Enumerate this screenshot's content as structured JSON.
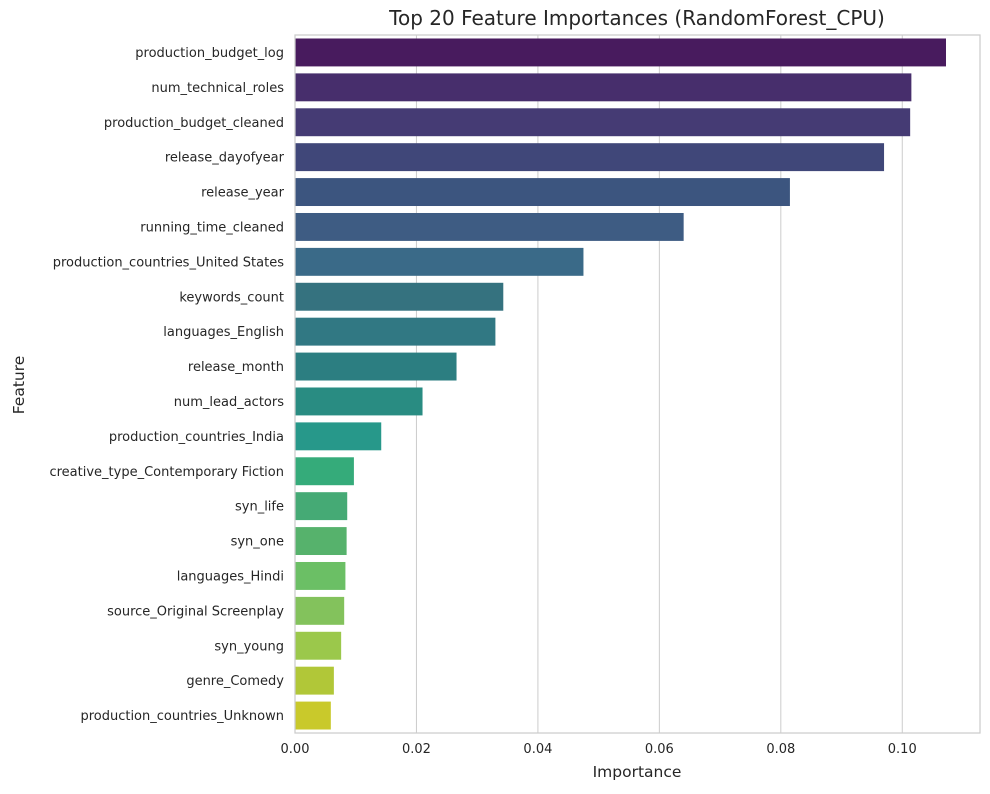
{
  "chart_data": {
    "type": "bar",
    "orientation": "horizontal",
    "title": "Top 20 Feature Importances (RandomForest_CPU)",
    "xlabel": "Importance",
    "ylabel": "Feature",
    "xlim": [
      0,
      0.1128
    ],
    "xticks": [
      0.0,
      0.02,
      0.04,
      0.06,
      0.08,
      0.1
    ],
    "xtick_labels": [
      "0.00",
      "0.02",
      "0.04",
      "0.06",
      "0.08",
      "0.10"
    ],
    "grid": "vertical",
    "palette": "viridis",
    "categories": [
      "production_budget_log",
      "num_technical_roles",
      "production_budget_cleaned",
      "release_dayofyear",
      "release_year",
      "running_time_cleaned",
      "production_countries_United States",
      "keywords_count",
      "languages_English",
      "release_month",
      "num_lead_actors",
      "production_countries_India",
      "creative_type_Contemporary Fiction",
      "syn_life",
      "syn_one",
      "languages_Hindi",
      "source_Original Screenplay",
      "syn_young",
      "genre_Comedy",
      "production_countries_Unknown"
    ],
    "values": [
      0.1072,
      0.1015,
      0.1013,
      0.097,
      0.0815,
      0.064,
      0.0475,
      0.0343,
      0.033,
      0.0266,
      0.021,
      0.0142,
      0.0097,
      0.0086,
      0.0085,
      0.0083,
      0.0081,
      0.0076,
      0.0064,
      0.0059
    ],
    "colors": [
      "#481b5e",
      "#472e6c",
      "#453b74",
      "#404779",
      "#3c557f",
      "#3e5c83",
      "#3a6a88",
      "#35727f",
      "#317883",
      "#2c7e81",
      "#298c82",
      "#27988a",
      "#35ab7a",
      "#45aa75",
      "#56b26c",
      "#6bbf65",
      "#83c25c",
      "#9bc84b",
      "#b1c738",
      "#c9c92b"
    ]
  }
}
